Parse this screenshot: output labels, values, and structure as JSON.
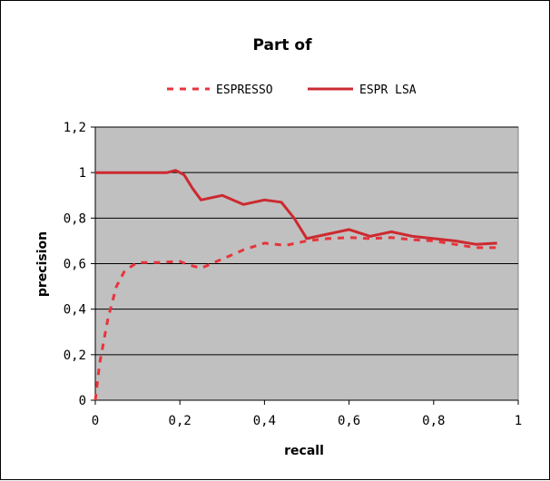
{
  "chart_data": {
    "type": "line",
    "title": "Part of",
    "xlabel": "recall",
    "ylabel": "precision",
    "xlim": [
      0,
      1
    ],
    "ylim": [
      0,
      1.2
    ],
    "x_ticks": [
      "0",
      "0,2",
      "0,4",
      "0,6",
      "0,8",
      "1"
    ],
    "y_ticks": [
      "0",
      "0,2",
      "0,4",
      "0,6",
      "0,8",
      "1",
      "1,2"
    ],
    "grid": true,
    "legend_position": "top",
    "plot_background": "#c0c0c0",
    "series": [
      {
        "name": "ESPRESSO",
        "style": "dashed",
        "color": "#e8343c",
        "points": [
          [
            0.0,
            0.0
          ],
          [
            0.01,
            0.16
          ],
          [
            0.03,
            0.36
          ],
          [
            0.05,
            0.5
          ],
          [
            0.07,
            0.57
          ],
          [
            0.1,
            0.605
          ],
          [
            0.15,
            0.605
          ],
          [
            0.2,
            0.61
          ],
          [
            0.22,
            0.595
          ],
          [
            0.25,
            0.58
          ],
          [
            0.3,
            0.62
          ],
          [
            0.35,
            0.66
          ],
          [
            0.4,
            0.69
          ],
          [
            0.45,
            0.68
          ],
          [
            0.5,
            0.7
          ],
          [
            0.55,
            0.71
          ],
          [
            0.6,
            0.715
          ],
          [
            0.65,
            0.71
          ],
          [
            0.7,
            0.715
          ],
          [
            0.75,
            0.705
          ],
          [
            0.8,
            0.7
          ],
          [
            0.85,
            0.685
          ],
          [
            0.9,
            0.67
          ],
          [
            0.95,
            0.67
          ]
        ]
      },
      {
        "name": "ESPR LSA",
        "style": "solid",
        "color": "#cc2a30",
        "points": [
          [
            0.0,
            1.0
          ],
          [
            0.1,
            1.0
          ],
          [
            0.17,
            1.0
          ],
          [
            0.19,
            1.01
          ],
          [
            0.21,
            0.99
          ],
          [
            0.23,
            0.93
          ],
          [
            0.25,
            0.88
          ],
          [
            0.3,
            0.9
          ],
          [
            0.35,
            0.86
          ],
          [
            0.4,
            0.88
          ],
          [
            0.44,
            0.87
          ],
          [
            0.47,
            0.8
          ],
          [
            0.5,
            0.71
          ],
          [
            0.55,
            0.73
          ],
          [
            0.6,
            0.75
          ],
          [
            0.65,
            0.72
          ],
          [
            0.7,
            0.74
          ],
          [
            0.75,
            0.72
          ],
          [
            0.8,
            0.71
          ],
          [
            0.85,
            0.7
          ],
          [
            0.9,
            0.685
          ],
          [
            0.95,
            0.69
          ]
        ]
      }
    ]
  }
}
